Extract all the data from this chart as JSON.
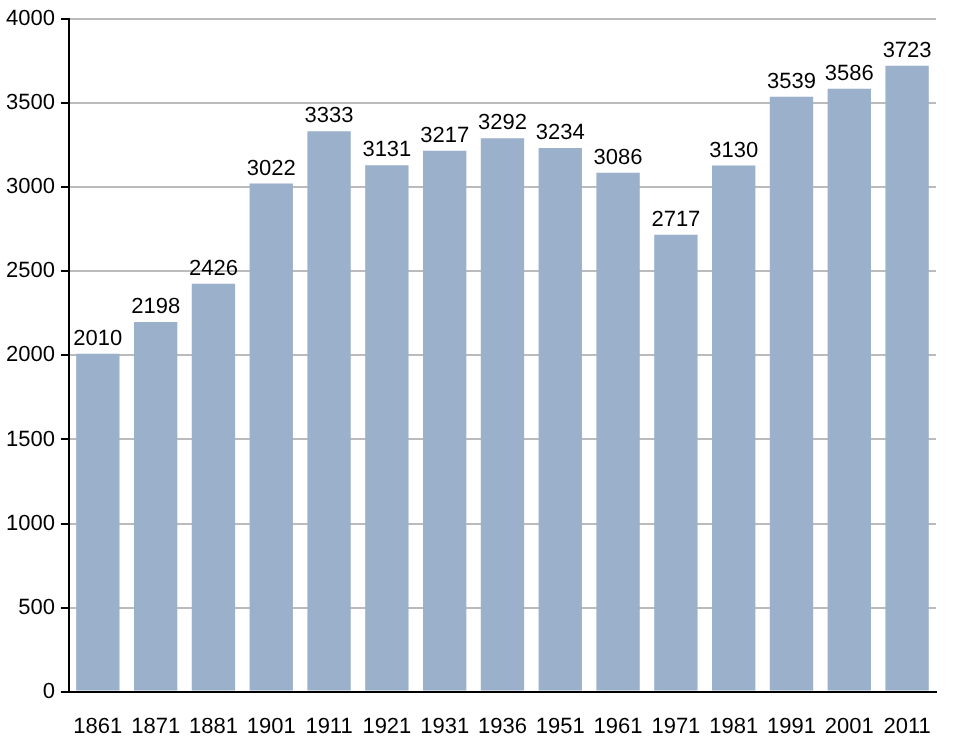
{
  "chart_data": {
    "type": "bar",
    "categories": [
      "1861",
      "1871",
      "1881",
      "1901",
      "1911",
      "1921",
      "1931",
      "1936",
      "1951",
      "1961",
      "1971",
      "1981",
      "1991",
      "2001",
      "2011"
    ],
    "values": [
      2010,
      2198,
      2426,
      3022,
      3333,
      3131,
      3217,
      3292,
      3234,
      3086,
      2717,
      3130,
      3539,
      3586,
      3723
    ],
    "color": "#9ab0cb",
    "ylim": [
      0,
      4000
    ],
    "yticks": [
      0,
      500,
      1000,
      1500,
      2000,
      2500,
      3000,
      3500,
      4000
    ],
    "grid": "y",
    "data_labels": true,
    "legend": false
  }
}
